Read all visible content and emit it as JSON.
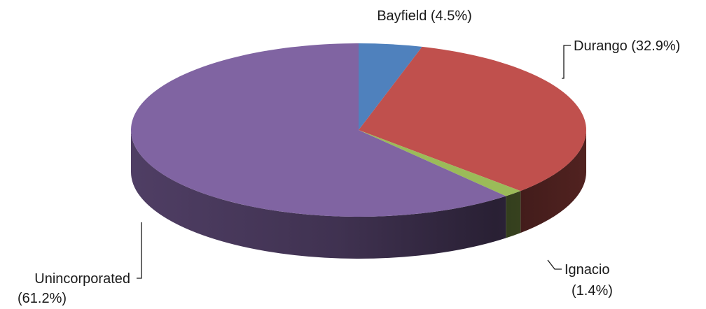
{
  "chart_data": {
    "type": "pie",
    "style": "3d",
    "title": "",
    "slices": [
      {
        "name": "Bayfield",
        "value": 4.5,
        "label_line1": "Bayfield (4.5%)",
        "label_line2": "",
        "color": "#4f81bd"
      },
      {
        "name": "Durango",
        "value": 32.9,
        "label_line1": "Durango (32.9%)",
        "label_line2": "",
        "color": "#c0504d"
      },
      {
        "name": "Ignacio",
        "value": 1.4,
        "label_line1": "Ignacio",
        "label_line2": "(1.4%)",
        "color": "#9bbb59"
      },
      {
        "name": "Unincorporated",
        "value": 61.2,
        "label_line1": "Unincorporated",
        "label_line2": "(61.2%)",
        "color": "#8064a2"
      }
    ]
  }
}
